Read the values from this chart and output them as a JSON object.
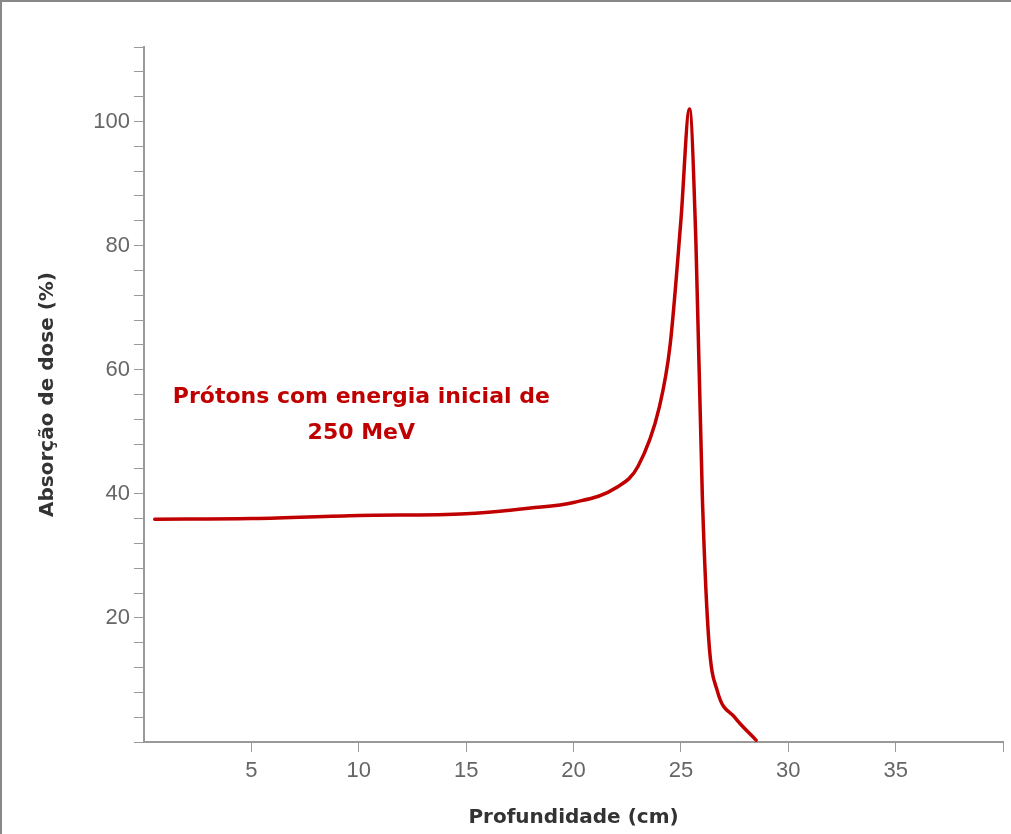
{
  "chart_data": {
    "type": "line",
    "xlabel": "Profundidade (cm)",
    "ylabel": "Absorção de dose (%)",
    "xlim": [
      0,
      40
    ],
    "xticks": [
      5,
      10,
      15,
      20,
      25,
      30,
      35,
      {
        "value": 40,
        "label": null
      }
    ],
    "ylim": [
      0,
      112
    ],
    "yticks": [
      {
        "value": 0,
        "label": null
      },
      {
        "value": 4,
        "label": null
      },
      {
        "value": 8,
        "label": null
      },
      {
        "value": 12,
        "label": null
      },
      {
        "value": 16,
        "label": null
      },
      20,
      {
        "value": 24,
        "label": null
      },
      {
        "value": 28,
        "label": null
      },
      {
        "value": 32,
        "label": null
      },
      {
        "value": 36,
        "label": null
      },
      40,
      {
        "value": 44,
        "label": null
      },
      {
        "value": 48,
        "label": null
      },
      {
        "value": 52,
        "label": null
      },
      {
        "value": 56,
        "label": null
      },
      60,
      {
        "value": 64,
        "label": null
      },
      {
        "value": 68,
        "label": null
      },
      {
        "value": 72,
        "label": null
      },
      {
        "value": 76,
        "label": null
      },
      80,
      {
        "value": 84,
        "label": null
      },
      {
        "value": 88,
        "label": null
      },
      {
        "value": 92,
        "label": null
      },
      {
        "value": 96,
        "label": null
      },
      100,
      {
        "value": 104,
        "label": null
      },
      {
        "value": 108,
        "label": null
      },
      {
        "value": 112,
        "label": null
      }
    ],
    "grid": false,
    "legend": false,
    "marker": "none",
    "line_style": "solid",
    "annotations": [
      "Prótons com energia inicial de 250 MeV"
    ],
    "series": [
      {
        "color": "#c00000",
        "x": [
          0.5,
          5,
          10,
          15,
          18,
          20,
          22,
          23,
          24,
          24.5,
          25,
          25.4,
          25.7,
          26,
          26.3,
          26.7,
          27.5,
          28.5
        ],
        "values": [
          35.9,
          36,
          36.5,
          36.8,
          37.7,
          38.6,
          41,
          44.4,
          54,
          64,
          84,
          102,
          80.6,
          39.5,
          16.4,
          8.2,
          4,
          0.3
        ]
      }
    ]
  }
}
